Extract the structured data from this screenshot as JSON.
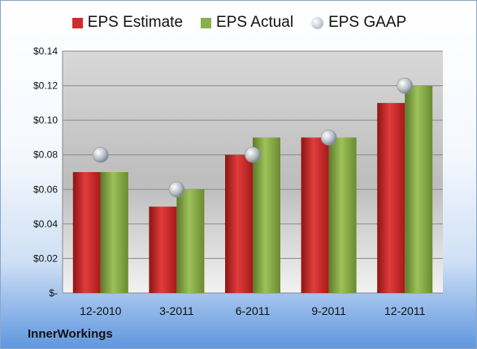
{
  "chart_data": {
    "type": "bar",
    "categories": [
      "12-2010",
      "3-2011",
      "6-2011",
      "9-2011",
      "12-2011"
    ],
    "series": [
      {
        "name": "EPS Estimate",
        "kind": "bar",
        "color": "#d42a2a",
        "values": [
          0.07,
          0.05,
          0.08,
          0.09,
          0.11
        ]
      },
      {
        "name": "EPS Actual",
        "kind": "bar",
        "color": "#8ab04a",
        "values": [
          0.07,
          0.06,
          0.09,
          0.09,
          0.12
        ]
      },
      {
        "name": "EPS GAAP",
        "kind": "marker",
        "color": "#b8bec6",
        "values": [
          0.08,
          0.06,
          0.08,
          0.09,
          0.12
        ]
      }
    ],
    "ylim": [
      0,
      0.14
    ],
    "yticks": [
      0,
      0.02,
      0.04,
      0.06,
      0.08,
      0.1,
      0.12,
      0.14
    ],
    "ytick_labels": [
      "$-",
      "$0.02",
      "$0.04",
      "$0.06",
      "$0.08",
      "$0.10",
      "$0.12",
      "$0.14"
    ],
    "grid": true,
    "legend_position": "top"
  },
  "company": "InnerWorkings"
}
